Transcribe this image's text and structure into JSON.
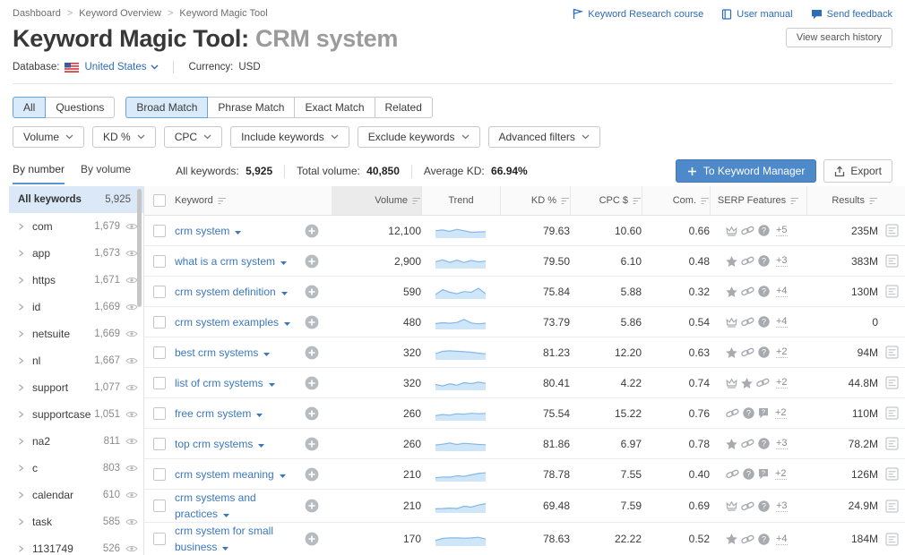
{
  "breadcrumb": {
    "items": [
      "Dashboard",
      "Keyword Overview",
      "Keyword Magic Tool"
    ]
  },
  "header": {
    "title": "Keyword Magic Tool:",
    "title_query": "CRM system",
    "database_label": "Database:",
    "database_value": "United States",
    "currency_label": "Currency:",
    "currency_value": "USD",
    "links": [
      {
        "label": "Keyword Research course",
        "icon": "course-icon"
      },
      {
        "label": "User manual",
        "icon": "manual-icon"
      },
      {
        "label": "Send feedback",
        "icon": "feedback-icon"
      }
    ],
    "view_history_label": "View search history"
  },
  "match_tabs": {
    "group1": [
      {
        "label": "All",
        "active": true
      },
      {
        "label": "Questions",
        "active": false
      }
    ],
    "group2": [
      {
        "label": "Broad Match",
        "active": true
      },
      {
        "label": "Phrase Match",
        "active": false
      },
      {
        "label": "Exact Match",
        "active": false
      },
      {
        "label": "Related",
        "active": false
      }
    ]
  },
  "filters": [
    "Volume",
    "KD %",
    "CPC",
    "Include keywords",
    "Exclude keywords",
    "Advanced filters"
  ],
  "statsbar": {
    "tabs": [
      {
        "label": "By number",
        "active": true
      },
      {
        "label": "By volume",
        "active": false
      }
    ],
    "stats": [
      {
        "label": "All keywords:",
        "value": "5,925"
      },
      {
        "label": "Total volume:",
        "value": "40,850"
      },
      {
        "label": "Average KD:",
        "value": "66.94%"
      }
    ],
    "keyword_manager_label": "To Keyword Manager",
    "export_label": "Export"
  },
  "sidebar": {
    "all_label": "All keywords",
    "all_count": "5,925",
    "groups": [
      {
        "label": "com",
        "count": "1,679"
      },
      {
        "label": "app",
        "count": "1,673"
      },
      {
        "label": "https",
        "count": "1,671"
      },
      {
        "label": "id",
        "count": "1,669"
      },
      {
        "label": "netsuite",
        "count": "1,669"
      },
      {
        "label": "nl",
        "count": "1,667"
      },
      {
        "label": "support",
        "count": "1,077"
      },
      {
        "label": "supportcase",
        "count": "1,051"
      },
      {
        "label": "na2",
        "count": "811"
      },
      {
        "label": "c",
        "count": "803"
      },
      {
        "label": "calendar",
        "count": "610"
      },
      {
        "label": "task",
        "count": "585"
      },
      {
        "label": "1131749",
        "count": "526"
      }
    ]
  },
  "table": {
    "headers": {
      "keyword": "Keyword",
      "volume": "Volume",
      "trend": "Trend",
      "kd": "KD %",
      "cpc": "CPC $",
      "com": "Com.",
      "serp": "SERP Features",
      "results": "Results"
    },
    "rows": [
      {
        "keyword": "crm system",
        "volume": "12,100",
        "kd": "79.63",
        "cpc": "10.60",
        "com": "0.66",
        "serp_icons": [
          "crown",
          "link",
          "question"
        ],
        "serp_more": "+5",
        "results": "235M",
        "trend": [
          0.55,
          0.62,
          0.5,
          0.68,
          0.55,
          0.42,
          0.45,
          0.48
        ]
      },
      {
        "keyword": "what is a crm system",
        "volume": "2,900",
        "kd": "79.50",
        "cpc": "6.10",
        "com": "0.48",
        "serp_icons": [
          "star",
          "link",
          "question"
        ],
        "serp_more": "+3",
        "results": "383M",
        "trend": [
          0.5,
          0.68,
          0.45,
          0.65,
          0.44,
          0.62,
          0.5,
          0.56
        ]
      },
      {
        "keyword": "crm system definition",
        "volume": "590",
        "kd": "75.84",
        "cpc": "5.88",
        "com": "0.32",
        "serp_icons": [
          "star",
          "link",
          "question"
        ],
        "serp_more": "+4",
        "results": "130M",
        "trend": [
          0.3,
          0.72,
          0.5,
          0.38,
          0.55,
          0.5,
          0.85,
          0.38
        ]
      },
      {
        "keyword": "crm system examples",
        "volume": "480",
        "kd": "73.79",
        "cpc": "5.86",
        "com": "0.54",
        "serp_icons": [
          "crown",
          "link",
          "question"
        ],
        "serp_more": "+4",
        "results": "0",
        "trend": [
          0.42,
          0.5,
          0.45,
          0.52,
          0.78,
          0.48,
          0.4,
          0.46
        ]
      },
      {
        "keyword": "best crm systems",
        "volume": "320",
        "kd": "81.23",
        "cpc": "12.20",
        "com": "0.63",
        "serp_icons": [
          "star",
          "link",
          "question"
        ],
        "serp_more": "+2",
        "results": "94M",
        "trend": [
          0.45,
          0.65,
          0.7,
          0.66,
          0.62,
          0.58,
          0.5,
          0.44
        ]
      },
      {
        "keyword": "list of crm systems",
        "volume": "320",
        "kd": "80.41",
        "cpc": "4.22",
        "com": "0.74",
        "serp_icons": [
          "crown",
          "star",
          "link"
        ],
        "serp_more": "+2",
        "results": "44.8M",
        "trend": [
          0.42,
          0.3,
          0.48,
          0.36,
          0.58,
          0.5,
          0.62,
          0.52
        ]
      },
      {
        "keyword": "free crm system",
        "volume": "260",
        "kd": "75.54",
        "cpc": "15.22",
        "com": "0.76",
        "serp_icons": [
          "link",
          "question",
          "faq"
        ],
        "serp_more": "+2",
        "results": "110M",
        "trend": [
          0.36,
          0.45,
          0.4,
          0.52,
          0.48,
          0.56,
          0.52,
          0.55
        ]
      },
      {
        "keyword": "top crm systems",
        "volume": "260",
        "kd": "81.86",
        "cpc": "6.97",
        "com": "0.78",
        "serp_icons": [
          "star",
          "link",
          "question"
        ],
        "serp_more": "+3",
        "results": "78.2M",
        "trend": [
          0.45,
          0.52,
          0.62,
          0.5,
          0.6,
          0.55,
          0.5,
          0.48
        ]
      },
      {
        "keyword": "crm system meaning",
        "volume": "210",
        "kd": "78.78",
        "cpc": "7.55",
        "com": "0.40",
        "serp_icons": [
          "link",
          "question",
          "faq"
        ],
        "serp_more": "+2",
        "results": "126M",
        "trend": [
          0.25,
          0.32,
          0.3,
          0.42,
          0.38,
          0.5,
          0.62,
          0.68
        ]
      },
      {
        "keyword": "crm systems and practices",
        "volume": "210",
        "kd": "69.48",
        "cpc": "7.59",
        "com": "0.69",
        "serp_icons": [
          "crown",
          "link",
          "question"
        ],
        "serp_more": "+3",
        "results": "24.9M",
        "trend": [
          0.28,
          0.3,
          0.34,
          0.3,
          0.5,
          0.42,
          0.6,
          0.72
        ]
      },
      {
        "keyword": "crm system for small business",
        "volume": "170",
        "kd": "78.63",
        "cpc": "22.22",
        "com": "0.52",
        "serp_icons": [
          "star",
          "link",
          "question"
        ],
        "serp_more": "+4",
        "results": "184M",
        "trend": [
          0.4,
          0.58,
          0.63,
          0.62,
          0.6,
          0.62,
          0.68,
          0.52
        ]
      }
    ]
  },
  "colors": {
    "link_blue": "#3a77bd",
    "top_link_blue": "#2e6cb5",
    "active_tab_bg": "#d9eafa",
    "active_tab_border": "#6ba3d6",
    "primary_button": "#4e8ac9",
    "sidebar_active_bg": "#dbe8f7",
    "sparkline_line": "#85b8e8",
    "sparkline_fill": "#cfe6f8"
  }
}
